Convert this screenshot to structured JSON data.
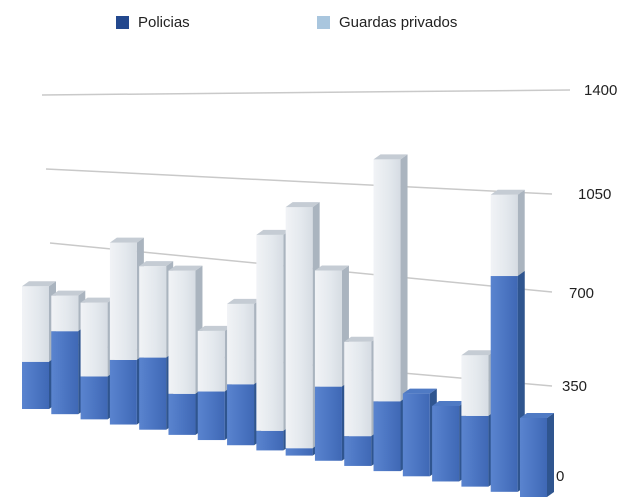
{
  "chart_data": {
    "type": "bar",
    "stacked": true,
    "three_d": true,
    "categories": [
      "",
      "",
      "",
      "",
      "",
      "",
      "",
      "",
      "",
      "",
      "",
      "",
      "",
      "",
      "",
      "",
      "",
      ""
    ],
    "series": [
      {
        "name": "Policias",
        "color": "#4a72c0",
        "values": [
          200,
          350,
          180,
          270,
          300,
          170,
          200,
          250,
          80,
          30,
          300,
          120,
          280,
          330,
          300,
          280,
          850,
          310
        ]
      },
      {
        "name": "Guardas privados",
        "color": "#dde3e9",
        "values": [
          320,
          150,
          310,
          490,
          380,
          510,
          250,
          330,
          800,
          980,
          470,
          380,
          970,
          0,
          0,
          240,
          320,
          0
        ]
      }
    ],
    "yticks": [
      0,
      350,
      700,
      1050,
      1400
    ],
    "ylim": [
      0,
      1400
    ],
    "grid": true,
    "legend_position": "top"
  }
}
